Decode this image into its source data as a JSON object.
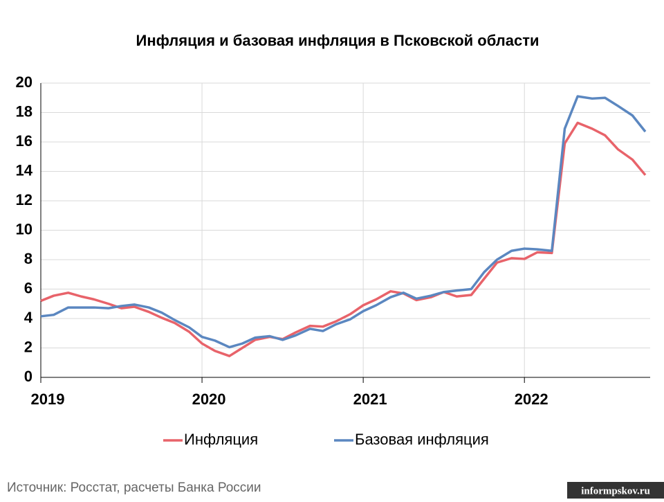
{
  "chart_data": {
    "type": "line",
    "title": "Инфляция и базовая инфляция в Псковской области",
    "x": [
      2019,
      2019.08,
      2019.17,
      2019.25,
      2019.33,
      2019.42,
      2019.5,
      2019.58,
      2019.67,
      2019.75,
      2019.83,
      2019.92,
      2020,
      2020.08,
      2020.17,
      2020.25,
      2020.33,
      2020.42,
      2020.5,
      2020.58,
      2020.67,
      2020.75,
      2020.83,
      2020.92,
      2021,
      2021.08,
      2021.17,
      2021.25,
      2021.33,
      2021.42,
      2021.5,
      2021.58,
      2021.67,
      2021.75,
      2021.83,
      2021.92,
      2022,
      2022.08,
      2022.17,
      2022.25,
      2022.33,
      2022.42,
      2022.5,
      2022.58,
      2022.67,
      2022.75
    ],
    "series": [
      {
        "name": "Инфляция",
        "color": "#e8636a",
        "values": [
          5.2,
          5.55,
          5.75,
          5.5,
          5.3,
          5.0,
          4.7,
          4.8,
          4.45,
          4.05,
          3.7,
          3.1,
          2.3,
          1.8,
          1.45,
          2.0,
          2.55,
          2.75,
          2.6,
          3.05,
          3.5,
          3.45,
          3.8,
          4.3,
          4.9,
          5.3,
          5.85,
          5.7,
          5.25,
          5.45,
          5.8,
          5.5,
          5.6,
          6.7,
          7.8,
          8.1,
          8.05,
          8.5,
          8.45,
          15.9,
          17.3,
          16.9,
          16.45,
          15.5,
          14.8,
          13.75
        ]
      },
      {
        "name": "Базовая инфляция",
        "color": "#5b87c0",
        "values": [
          4.15,
          4.25,
          4.75,
          4.75,
          4.75,
          4.7,
          4.85,
          4.95,
          4.75,
          4.4,
          3.9,
          3.4,
          2.75,
          2.5,
          2.05,
          2.3,
          2.7,
          2.8,
          2.55,
          2.85,
          3.3,
          3.15,
          3.6,
          3.95,
          4.5,
          4.9,
          5.45,
          5.75,
          5.35,
          5.55,
          5.8,
          5.9,
          6.0,
          7.15,
          8.0,
          8.6,
          8.75,
          8.7,
          8.6,
          16.9,
          19.1,
          18.95,
          19.0,
          18.45,
          17.8,
          16.7
        ]
      }
    ],
    "xlim": [
      2019,
      2022.78
    ],
    "xticks": [
      2019,
      2020,
      2021,
      2022
    ],
    "ylim": [
      0,
      20
    ],
    "yticks": [
      0,
      2,
      4,
      6,
      8,
      10,
      12,
      14,
      16,
      18,
      20
    ],
    "grid": true,
    "legend": "bottom",
    "source": "Источник: Росстат, расчеты Банка России",
    "watermark": "informpskov.ru"
  }
}
